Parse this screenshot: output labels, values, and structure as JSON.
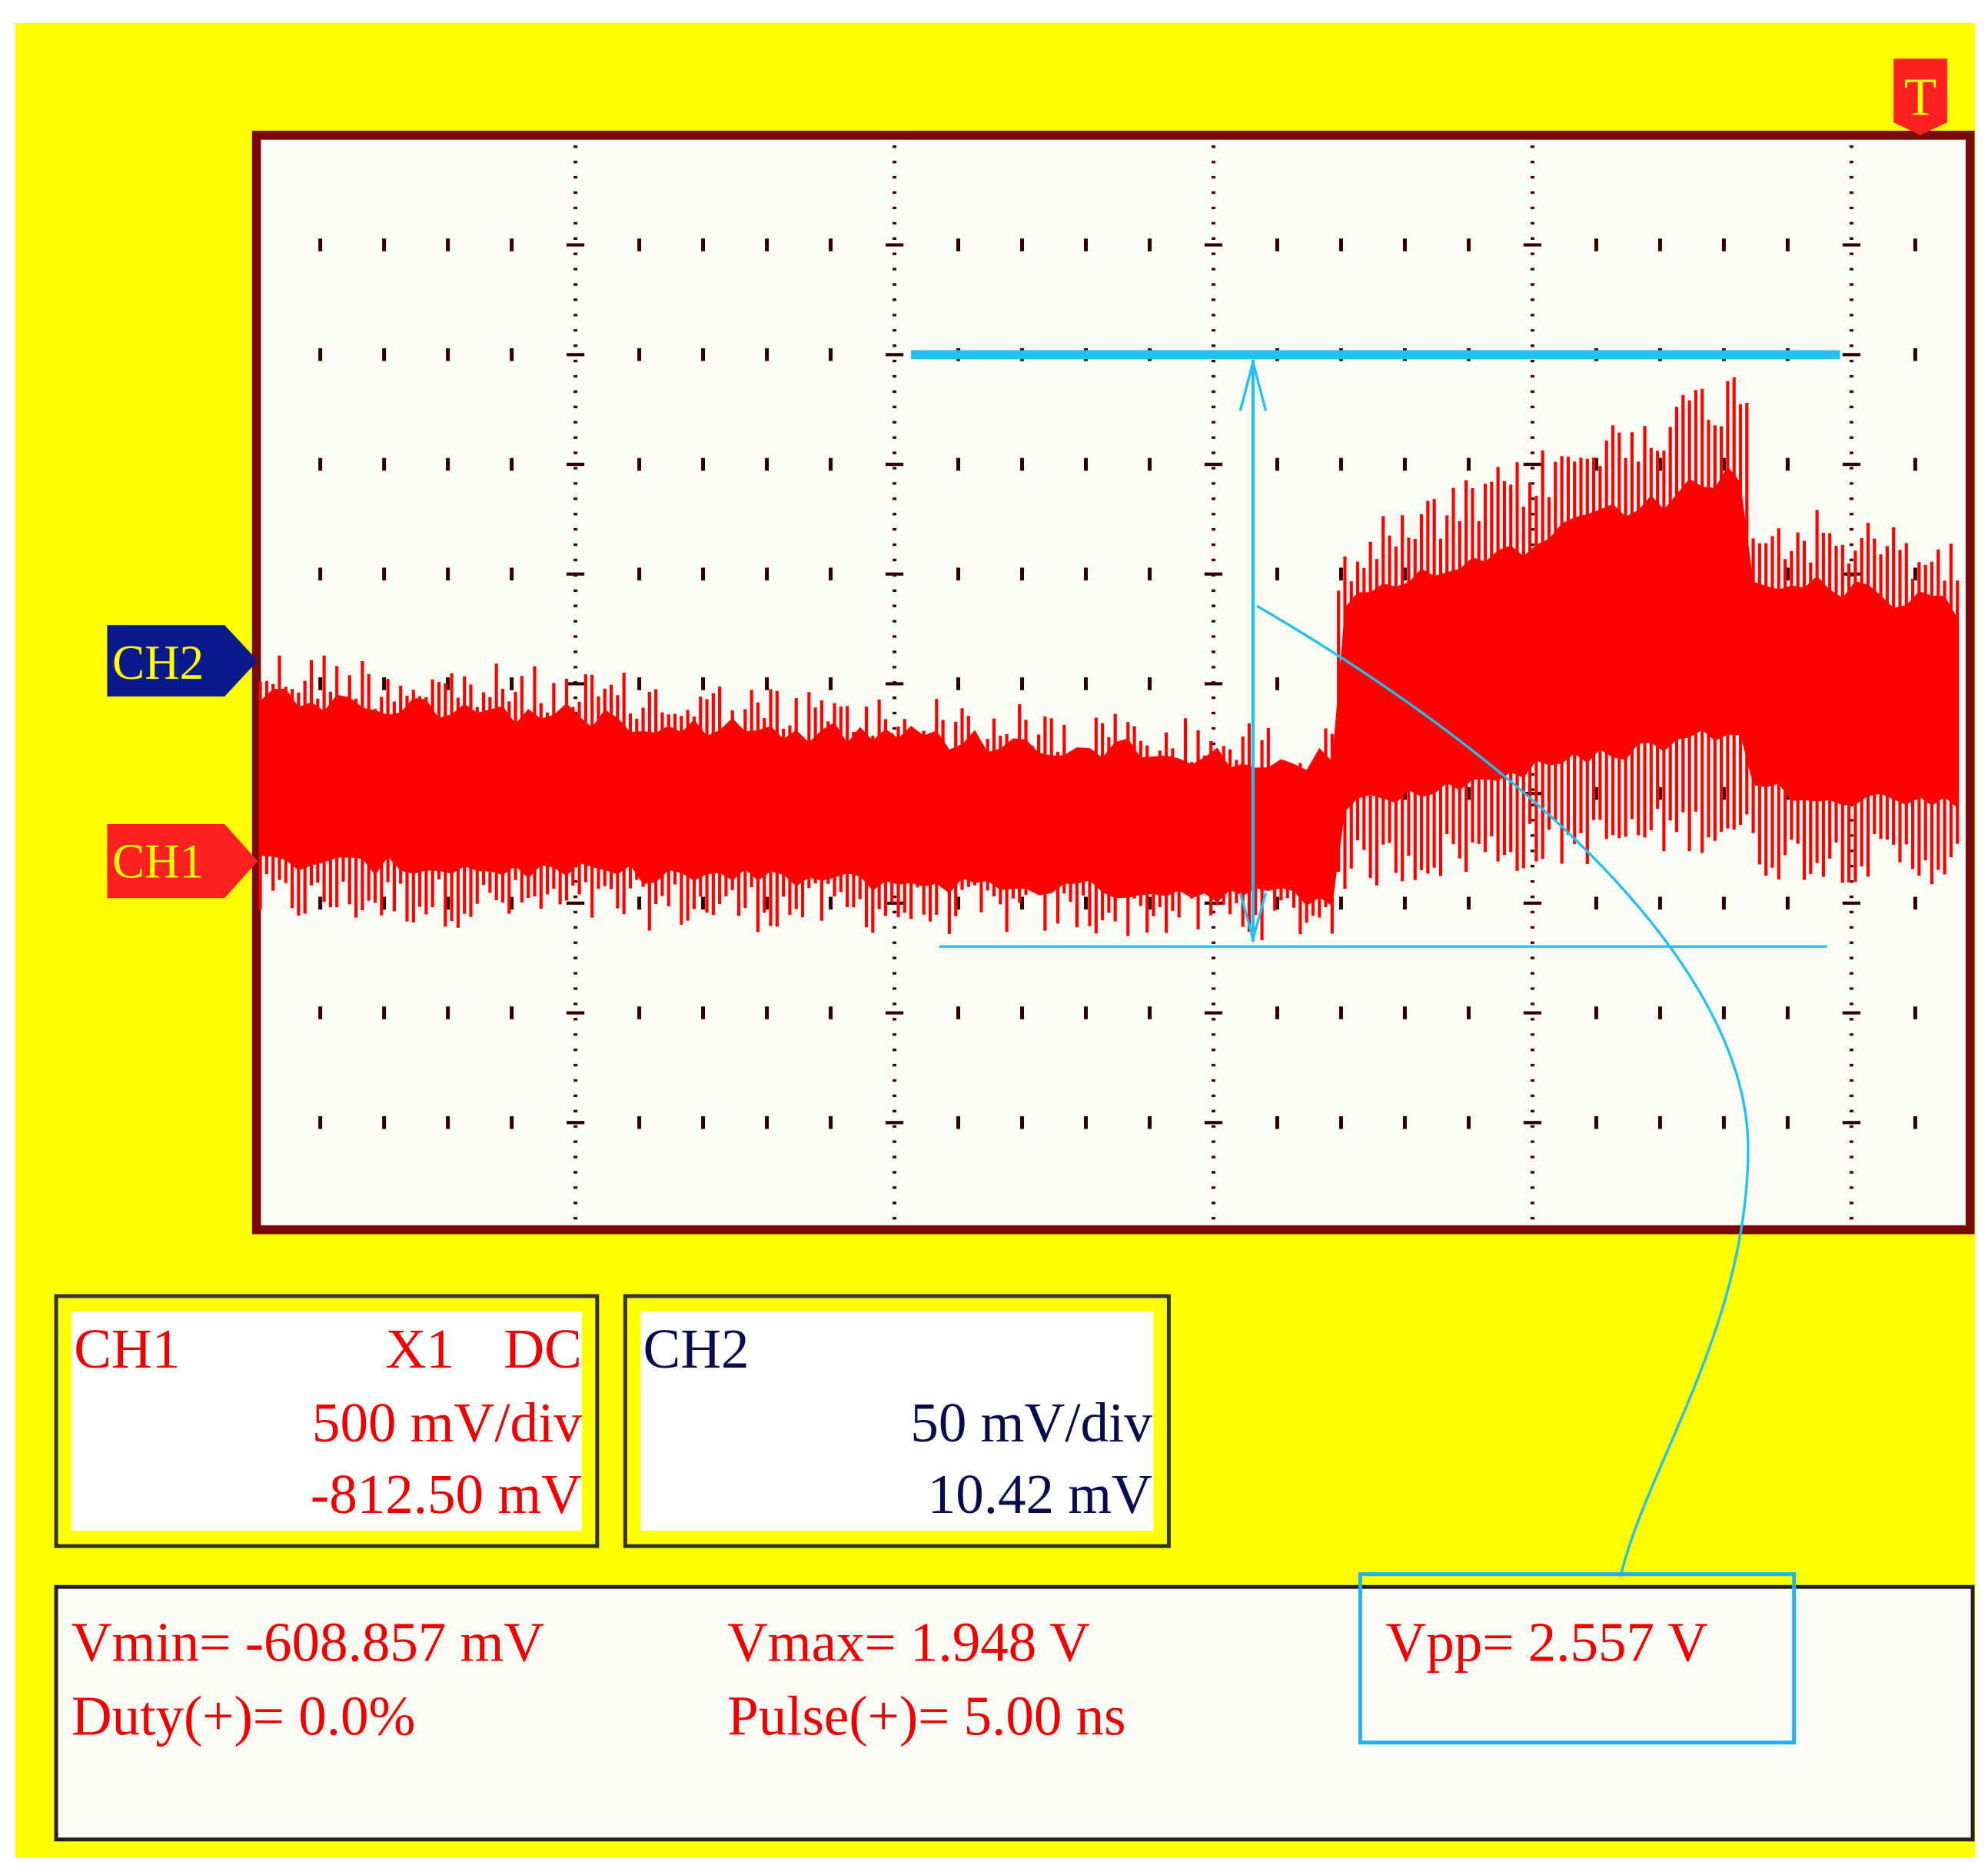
{
  "trigger_marker": "T",
  "channel_markers": {
    "ch2": "CH2",
    "ch1": "CH1"
  },
  "ch1_panel": {
    "title": "CH1",
    "probe": "X1",
    "coupling": "DC",
    "scale": "500 mV/div",
    "offset": "-812.50 mV"
  },
  "ch2_panel": {
    "title": "CH2",
    "scale": "50 mV/div",
    "offset": "10.42 mV"
  },
  "measurements": {
    "vmin": "Vmin= -608.857 mV",
    "vmax": "Vmax= 1.948 V",
    "vpp": "Vpp= 2.557 V",
    "duty": "Duty(+)= 0.0%",
    "pulse": "Pulse(+)= 5.00 ns"
  }
}
